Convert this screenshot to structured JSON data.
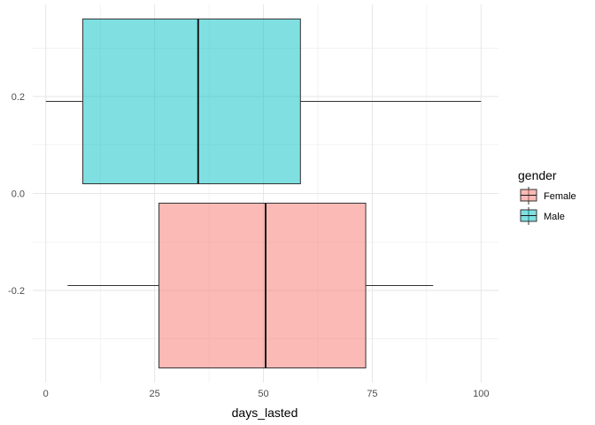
{
  "chart_data": {
    "type": "boxplot",
    "orientation": "horizontal",
    "xlabel": "days_lasted",
    "ylabel": "",
    "xlim": [
      -3,
      104
    ],
    "ylim": [
      -0.39,
      0.39
    ],
    "x_ticks": [
      0,
      25,
      50,
      75,
      100
    ],
    "y_ticks": [
      -0.2,
      0.0,
      0.2
    ],
    "y_tick_labels": [
      "-0.2",
      "0.0",
      "0.2"
    ],
    "grid": true,
    "legend": {
      "title": "gender",
      "position": "right",
      "entries": [
        "Female",
        "Male"
      ]
    },
    "series": [
      {
        "name": "Female",
        "color": "#F8766D",
        "fill_opacity": 0.5,
        "min": 5,
        "q1": 26,
        "median": 50.5,
        "q3": 73.5,
        "max": 89,
        "y_center": -0.19,
        "y_low": -0.36,
        "y_high": -0.02
      },
      {
        "name": "Male",
        "color": "#00BFC4",
        "fill_opacity": 0.5,
        "min": 0,
        "q1": 8.5,
        "median": 35,
        "q3": 58.5,
        "max": 100,
        "y_center": 0.19,
        "y_low": 0.02,
        "y_high": 0.36
      }
    ]
  }
}
